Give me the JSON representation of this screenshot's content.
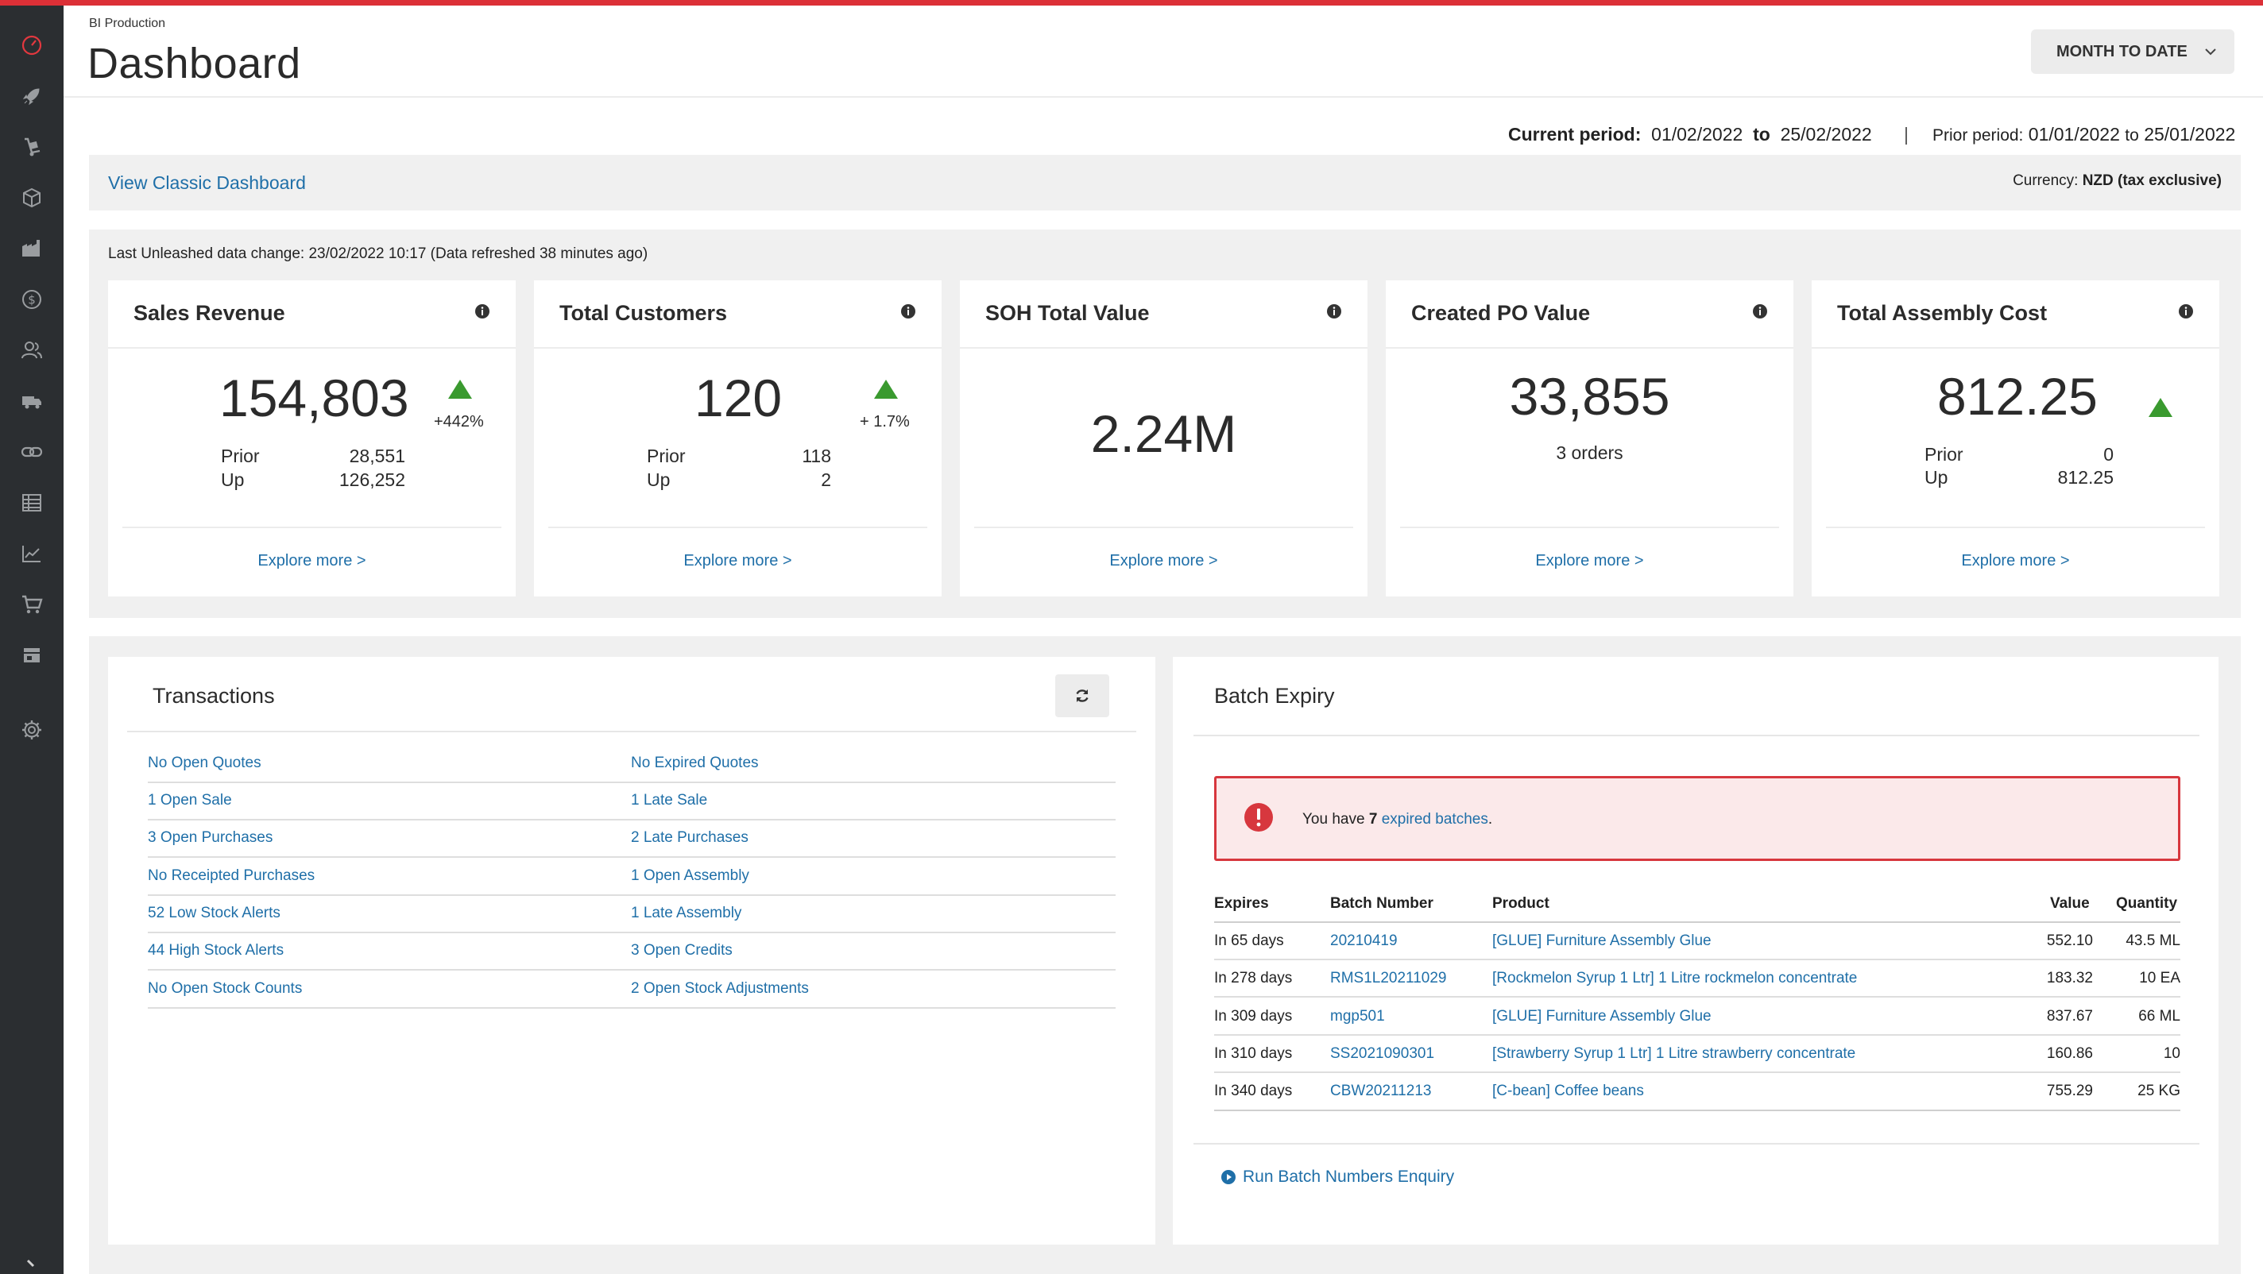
{
  "header": {
    "breadcrumb": "BI Production",
    "title": "Dashboard",
    "period_button": "MONTH TO DATE"
  },
  "period": {
    "current_label": "Current period:",
    "current_from": "01/02/2022",
    "to_word": "to",
    "current_to": "25/02/2022",
    "separator": "|",
    "prior_label": "Prior period:",
    "prior_from": "01/01/2022",
    "prior_to_word": "to",
    "prior_to": "25/01/2022"
  },
  "classic": {
    "link": "View Classic Dashboard",
    "currency_label": "Currency:",
    "currency_value": "NZD (tax exclusive)"
  },
  "kpi": {
    "last_change": "Last Unleashed data change: 23/02/2022 10:17 (Data refreshed 38 minutes ago)",
    "explore": "Explore more >",
    "cards": [
      {
        "title": "Sales Revenue",
        "value": "154,803",
        "pct": "+442%",
        "prior_label": "Prior",
        "prior": "28,551",
        "up_label": "Up",
        "up": "126,252"
      },
      {
        "title": "Total Customers",
        "value": "120",
        "pct": "+ 1.7%",
        "prior_label": "Prior",
        "prior": "118",
        "up_label": "Up",
        "up": "2"
      },
      {
        "title": "SOH Total Value",
        "value": "2.24M"
      },
      {
        "title": "Created PO Value",
        "value": "33,855",
        "sub": "3 orders"
      },
      {
        "title": "Total Assembly Cost",
        "value": "812.25",
        "prior_label": "Prior",
        "prior": "0",
        "up_label": "Up",
        "up": "812.25"
      }
    ]
  },
  "transactions": {
    "title": "Transactions",
    "left": [
      "No Open Quotes",
      "1 Open Sale",
      "3 Open Purchases",
      "No Receipted Purchases",
      "52 Low Stock Alerts",
      "44 High Stock Alerts",
      "No Open Stock Counts"
    ],
    "right": [
      "No Expired Quotes",
      "1 Late Sale",
      "2 Late Purchases",
      "1 Open Assembly",
      "1 Late Assembly",
      "3 Open Credits",
      "2 Open Stock Adjustments"
    ]
  },
  "batch": {
    "title": "Batch Expiry",
    "alert_prefix": "You have",
    "alert_count": "7",
    "alert_link": "expired batches",
    "alert_suffix": ".",
    "columns": [
      "Expires",
      "Batch Number",
      "Product",
      "Value",
      "Quantity"
    ],
    "rows": [
      {
        "expires": "In 65 days",
        "batch": "20210419",
        "product": "[GLUE] Furniture Assembly Glue",
        "value": "552.10",
        "qty": "43.5 ML"
      },
      {
        "expires": "In 278 days",
        "batch": "RMS1L20211029",
        "product": "[Rockmelon Syrup 1 Ltr] 1 Litre rockmelon concentrate",
        "value": "183.32",
        "qty": "10 EA"
      },
      {
        "expires": "In 309 days",
        "batch": "mgp501",
        "product": "[GLUE] Furniture Assembly Glue",
        "value": "837.67",
        "qty": "66 ML"
      },
      {
        "expires": "In 310 days",
        "batch": "SS2021090301",
        "product": "[Strawberry Syrup 1 Ltr] 1 Litre strawberry concentrate",
        "value": "160.86",
        "qty": "10"
      },
      {
        "expires": "In 340 days",
        "batch": "CBW20211213",
        "product": "[C-bean] Coffee beans",
        "value": "755.29",
        "qty": "25 KG"
      }
    ],
    "run_link": "Run Batch Numbers Enquiry"
  },
  "colors": {
    "accent": "#dc3037",
    "link": "#1f6fa8",
    "up": "#3a9a2f",
    "sidebar": "#2b2e31"
  },
  "sidebar_icons": [
    "dashboard-icon",
    "rocket-icon",
    "dolly-icon",
    "box-icon",
    "warehouse-icon",
    "dollar-icon",
    "customers-icon",
    "truck-icon",
    "link-icon",
    "table-icon",
    "chart-icon",
    "cart-icon",
    "store-icon",
    "gear-icon",
    "expand-icon"
  ]
}
